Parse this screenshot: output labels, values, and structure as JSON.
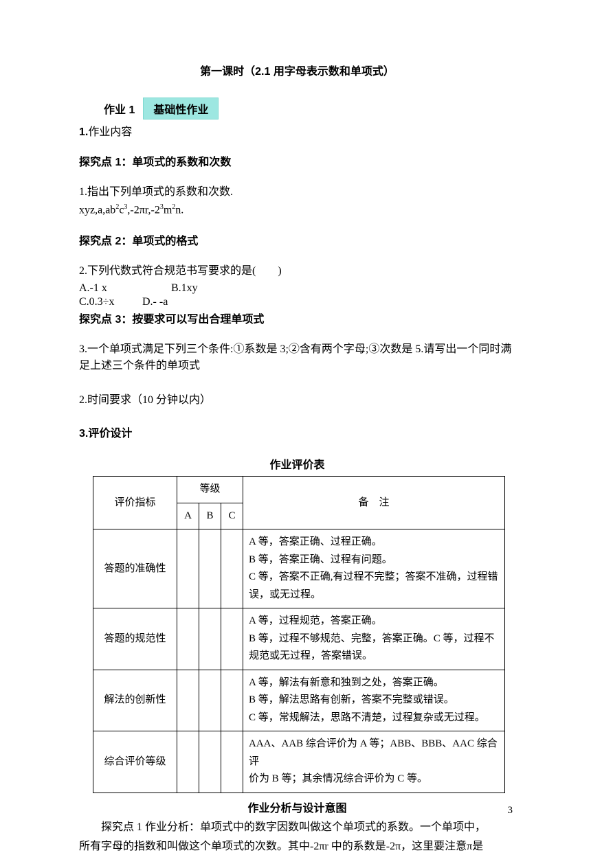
{
  "title": "第一课时（2.1 用字母表示数和单项式）",
  "hw_header": {
    "label": "作业 1",
    "badge": "基础性作业"
  },
  "content_label": "1.作业内容",
  "tanjiu1": {
    "title": "探究点 1：单项式的系数和次数",
    "q": "1.指出下列单项式的系数和次数.",
    "expr": "xyz,a,ab²c³,-2πr,-2³m²n."
  },
  "tanjiu2": {
    "title": "探究点 2：单项式的格式",
    "q": "2.下列代数式符合规范书写要求的是(  )",
    "optA": "A.-1 x",
    "optB": "B.1xy",
    "optC": "C.0.3÷x",
    "optD": "D.- -a"
  },
  "tanjiu3": {
    "title": "探究点 3：按要求可以写出合理单项式",
    "q": "3.一个单项式满足下列三个条件:①系数是 3;②含有两个字母;③次数是 5.请写出一个同时满足上述三个条件的单项式"
  },
  "time_req": "2.时间要求（10 分钟以内）",
  "eval_design": "3.评价设计",
  "eval_table": {
    "title": "作业评价表",
    "headers": {
      "metric": "评价指标",
      "grade": "等级",
      "A": "A",
      "B": "B",
      "C": "C",
      "remark": "备 注"
    },
    "rows": [
      {
        "metric": "答题的准确性",
        "remark": "A 等，答案正确、过程正确。\nB 等，答案正确、过程有问题。\nC 等，答案不正确,有过程不完整；答案不准确，过程错误，或无过程。"
      },
      {
        "metric": "答题的规范性",
        "remark": "A 等，过程规范，答案正确。\nB 等，过程不够规范、完整，答案正确。C 等，过程不规范或无过程，答案错误。"
      },
      {
        "metric": "解法的创新性",
        "remark": "A 等，解法有新意和独到之处，答案正确。\nB 等，解法思路有创新，答案不完整或错误。\nC 等，常规解法，思路不清楚，过程复杂或无过程。"
      },
      {
        "metric": "综合评价等级",
        "remark": "AAA、AAB 综合评价为 A 等；ABB、BBB、AAC 综合评\n价为 B 等；其余情况综合评价为 C 等。"
      }
    ]
  },
  "analysis": {
    "title": "作业分析与设计意图",
    "p1": "探究点 1 作业分析：单项式中的数字因数叫做这个单项式的系数。一个单项中，",
    "p2": "所有字母的指数和叫做这个单项式的次数。其中-2πr 中的系数是-2π，这里要注意π是"
  },
  "page_num": "3"
}
